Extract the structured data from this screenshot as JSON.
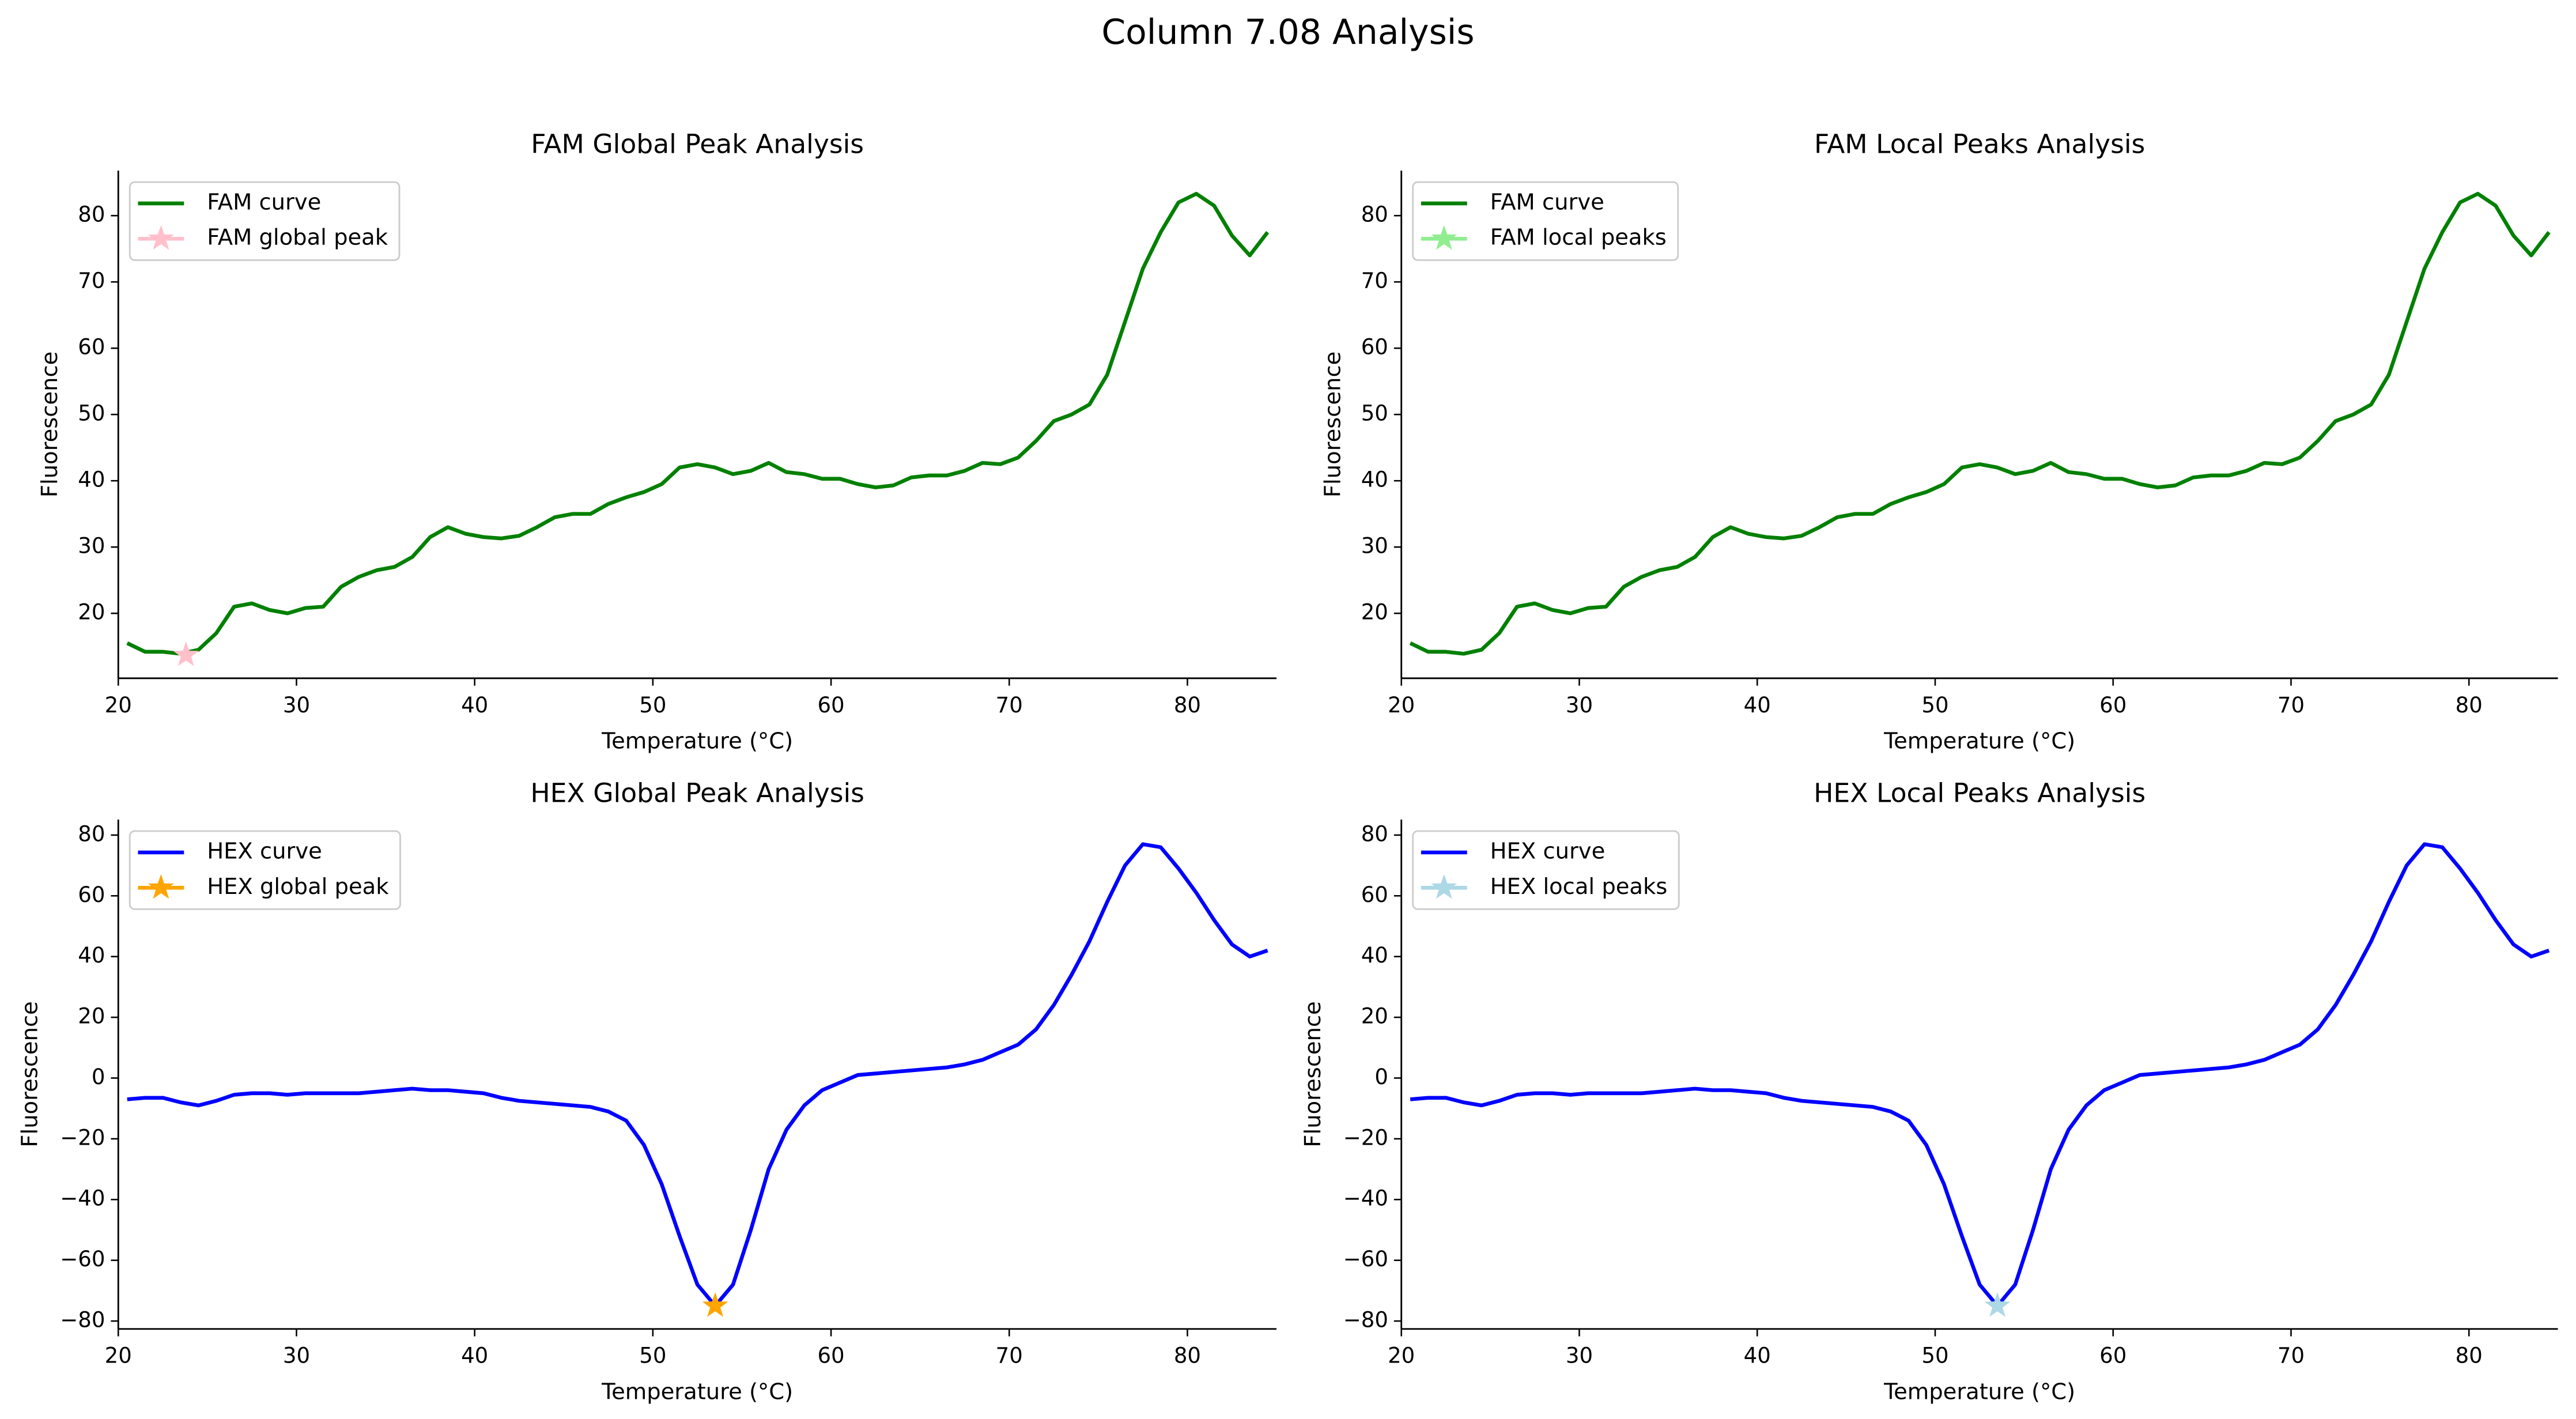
{
  "title": "Column 7.08 Analysis",
  "chart_data": [
    {
      "type": "line",
      "title": "FAM Global Peak Analysis",
      "xlabel": "Temperature (°C)",
      "ylabel": "Fluorescence",
      "xlim": [
        20,
        85
      ],
      "ylim": [
        10.2,
        86.8
      ],
      "xticks": [
        20,
        30,
        40,
        50,
        60,
        70,
        80
      ],
      "yticks": [
        20,
        30,
        40,
        50,
        60,
        70,
        80
      ],
      "legend": "upper left",
      "series": [
        {
          "name": "FAM curve",
          "color": "#008000",
          "x": [
            20.5,
            21.5,
            22.5,
            23.5,
            24.5,
            25.5,
            26.5,
            27.5,
            28.5,
            29.5,
            30.5,
            31.5,
            32.5,
            33.5,
            34.5,
            35.5,
            36.5,
            37.5,
            38.5,
            39.5,
            40.5,
            41.5,
            42.5,
            43.5,
            44.5,
            45.5,
            46.5,
            47.5,
            48.5,
            49.5,
            50.5,
            51.5,
            52.5,
            53.5,
            54.5,
            55.5,
            56.5,
            57.5,
            58.5,
            59.5,
            60.5,
            61.5,
            62.5,
            63.5,
            64.5,
            65.5,
            66.5,
            67.5,
            68.5,
            69.5,
            70.5,
            71.5,
            72.5,
            73.5,
            74.5,
            75.5,
            76.5,
            77.5,
            78.5,
            79.5,
            80.5,
            81.5,
            82.5,
            83.5,
            84.5
          ],
          "values": [
            15.5,
            14.2,
            14.2,
            13.9,
            14.5,
            17,
            21,
            21.5,
            20.5,
            20,
            20.8,
            21,
            24,
            25.5,
            26.5,
            27,
            28.5,
            31.5,
            33,
            32,
            31.5,
            31.3,
            31.7,
            33,
            34.5,
            35,
            35,
            36.5,
            37.5,
            38.3,
            39.5,
            42,
            42.5,
            42,
            41,
            41.5,
            42.7,
            41.3,
            41,
            40.3,
            40.3,
            39.5,
            39,
            39.3,
            40.5,
            40.8,
            40.8,
            41.5,
            42.7,
            42.5,
            43.5,
            46,
            49,
            50,
            51.5,
            56,
            64,
            72,
            77.5,
            82,
            83.3,
            81.5,
            77,
            74,
            77.5
          ]
        },
        {
          "name": "FAM global peak",
          "color": "#ffc0cb",
          "marker": "star",
          "x": [
            23.8
          ],
          "values": [
            13.7
          ]
        }
      ]
    },
    {
      "type": "line",
      "title": "FAM Local Peaks Analysis",
      "xlabel": "Temperature (°C)",
      "ylabel": "Fluorescence",
      "xlim": [
        20,
        85
      ],
      "ylim": [
        10.2,
        86.8
      ],
      "xticks": [
        20,
        30,
        40,
        50,
        60,
        70,
        80
      ],
      "yticks": [
        20,
        30,
        40,
        50,
        60,
        70,
        80
      ],
      "legend": "upper left",
      "series": [
        {
          "name": "FAM curve",
          "color": "#008000",
          "x": [
            20.5,
            21.5,
            22.5,
            23.5,
            24.5,
            25.5,
            26.5,
            27.5,
            28.5,
            29.5,
            30.5,
            31.5,
            32.5,
            33.5,
            34.5,
            35.5,
            36.5,
            37.5,
            38.5,
            39.5,
            40.5,
            41.5,
            42.5,
            43.5,
            44.5,
            45.5,
            46.5,
            47.5,
            48.5,
            49.5,
            50.5,
            51.5,
            52.5,
            53.5,
            54.5,
            55.5,
            56.5,
            57.5,
            58.5,
            59.5,
            60.5,
            61.5,
            62.5,
            63.5,
            64.5,
            65.5,
            66.5,
            67.5,
            68.5,
            69.5,
            70.5,
            71.5,
            72.5,
            73.5,
            74.5,
            75.5,
            76.5,
            77.5,
            78.5,
            79.5,
            80.5,
            81.5,
            82.5,
            83.5,
            84.5
          ],
          "values": [
            15.5,
            14.2,
            14.2,
            13.9,
            14.5,
            17,
            21,
            21.5,
            20.5,
            20,
            20.8,
            21,
            24,
            25.5,
            26.5,
            27,
            28.5,
            31.5,
            33,
            32,
            31.5,
            31.3,
            31.7,
            33,
            34.5,
            35,
            35,
            36.5,
            37.5,
            38.3,
            39.5,
            42,
            42.5,
            42,
            41,
            41.5,
            42.7,
            41.3,
            41,
            40.3,
            40.3,
            39.5,
            39,
            39.3,
            40.5,
            40.8,
            40.8,
            41.5,
            42.7,
            42.5,
            43.5,
            46,
            49,
            50,
            51.5,
            56,
            64,
            72,
            77.5,
            82,
            83.3,
            81.5,
            77,
            74,
            77.5
          ]
        },
        {
          "name": "FAM local peaks",
          "color": "#90ee90",
          "marker": "star",
          "x": [],
          "values": []
        }
      ]
    },
    {
      "type": "line",
      "title": "HEX Global Peak Analysis",
      "xlabel": "Temperature (°C)",
      "ylabel": "Fluorescence",
      "xlim": [
        20,
        85
      ],
      "ylim": [
        -82.6,
        85.1
      ],
      "xticks": [
        20,
        30,
        40,
        50,
        60,
        70,
        80
      ],
      "yticks": [
        {
          "value": -80,
          "label": "−80"
        },
        {
          "value": -60,
          "label": "−60"
        },
        {
          "value": -40,
          "label": "−40"
        },
        {
          "value": -20,
          "label": "−20"
        },
        0,
        20,
        40,
        60,
        80
      ],
      "legend": "upper left",
      "series": [
        {
          "name": "HEX curve",
          "color": "#0000ff",
          "x": [
            20.5,
            21.5,
            22.5,
            23.5,
            24.5,
            25.5,
            26.5,
            27.5,
            28.5,
            29.5,
            30.5,
            31.5,
            32.5,
            33.5,
            34.5,
            35.5,
            36.5,
            37.5,
            38.5,
            39.5,
            40.5,
            41.5,
            42.5,
            43.5,
            44.5,
            45.5,
            46.5,
            47.5,
            48.5,
            49.5,
            50.5,
            51.5,
            52.5,
            53.5,
            54.5,
            55.5,
            56.5,
            57.5,
            58.5,
            59.5,
            60.5,
            61.5,
            62.5,
            63.5,
            64.5,
            65.5,
            66.5,
            67.5,
            68.5,
            69.5,
            70.5,
            71.5,
            72.5,
            73.5,
            74.5,
            75.5,
            76.5,
            77.5,
            78.5,
            79.5,
            80.5,
            81.5,
            82.5,
            83.5,
            84.5
          ],
          "values": [
            -7,
            -6.5,
            -6.5,
            -8,
            -9,
            -7.5,
            -5.5,
            -5,
            -5,
            -5.5,
            -5,
            -5,
            -5,
            -5,
            -4.5,
            -4,
            -3.5,
            -4,
            -4,
            -4.5,
            -5,
            -6.5,
            -7.5,
            -8,
            -8.5,
            -9,
            -9.5,
            -11,
            -14,
            -22,
            -35,
            -52,
            -68,
            -75,
            -68,
            -50,
            -30,
            -17,
            -9,
            -4,
            -1.5,
            1,
            1.5,
            2,
            2.5,
            3,
            3.5,
            4.5,
            6,
            8.5,
            11,
            16,
            24,
            34,
            45,
            58,
            70,
            77,
            76,
            69,
            61,
            52,
            44,
            40,
            42
          ]
        },
        {
          "name": "HEX global peak",
          "color": "#ffa500",
          "marker": "star",
          "x": [
            53.5
          ],
          "values": [
            -75
          ]
        }
      ]
    },
    {
      "type": "line",
      "title": "HEX Local Peaks Analysis",
      "xlabel": "Temperature (°C)",
      "ylabel": "Fluorescence",
      "xlim": [
        20,
        85
      ],
      "ylim": [
        -82.6,
        85.1
      ],
      "xticks": [
        20,
        30,
        40,
        50,
        60,
        70,
        80
      ],
      "yticks": [
        {
          "value": -80,
          "label": "−80"
        },
        {
          "value": -60,
          "label": "−60"
        },
        {
          "value": -40,
          "label": "−40"
        },
        {
          "value": -20,
          "label": "−20"
        },
        0,
        20,
        40,
        60,
        80
      ],
      "legend": "upper left",
      "series": [
        {
          "name": "HEX curve",
          "color": "#0000ff",
          "x": [
            20.5,
            21.5,
            22.5,
            23.5,
            24.5,
            25.5,
            26.5,
            27.5,
            28.5,
            29.5,
            30.5,
            31.5,
            32.5,
            33.5,
            34.5,
            35.5,
            36.5,
            37.5,
            38.5,
            39.5,
            40.5,
            41.5,
            42.5,
            43.5,
            44.5,
            45.5,
            46.5,
            47.5,
            48.5,
            49.5,
            50.5,
            51.5,
            52.5,
            53.5,
            54.5,
            55.5,
            56.5,
            57.5,
            58.5,
            59.5,
            60.5,
            61.5,
            62.5,
            63.5,
            64.5,
            65.5,
            66.5,
            67.5,
            68.5,
            69.5,
            70.5,
            71.5,
            72.5,
            73.5,
            74.5,
            75.5,
            76.5,
            77.5,
            78.5,
            79.5,
            80.5,
            81.5,
            82.5,
            83.5,
            84.5
          ],
          "values": [
            -7,
            -6.5,
            -6.5,
            -8,
            -9,
            -7.5,
            -5.5,
            -5,
            -5,
            -5.5,
            -5,
            -5,
            -5,
            -5,
            -4.5,
            -4,
            -3.5,
            -4,
            -4,
            -4.5,
            -5,
            -6.5,
            -7.5,
            -8,
            -8.5,
            -9,
            -9.5,
            -11,
            -14,
            -22,
            -35,
            -52,
            -68,
            -75,
            -68,
            -50,
            -30,
            -17,
            -9,
            -4,
            -1.5,
            1,
            1.5,
            2,
            2.5,
            3,
            3.5,
            4.5,
            6,
            8.5,
            11,
            16,
            24,
            34,
            45,
            58,
            70,
            77,
            76,
            69,
            61,
            52,
            44,
            40,
            42
          ]
        },
        {
          "name": "HEX local peaks",
          "color": "#add8e6",
          "marker": "star",
          "x": [
            53.5
          ],
          "values": [
            -75
          ]
        }
      ]
    }
  ]
}
